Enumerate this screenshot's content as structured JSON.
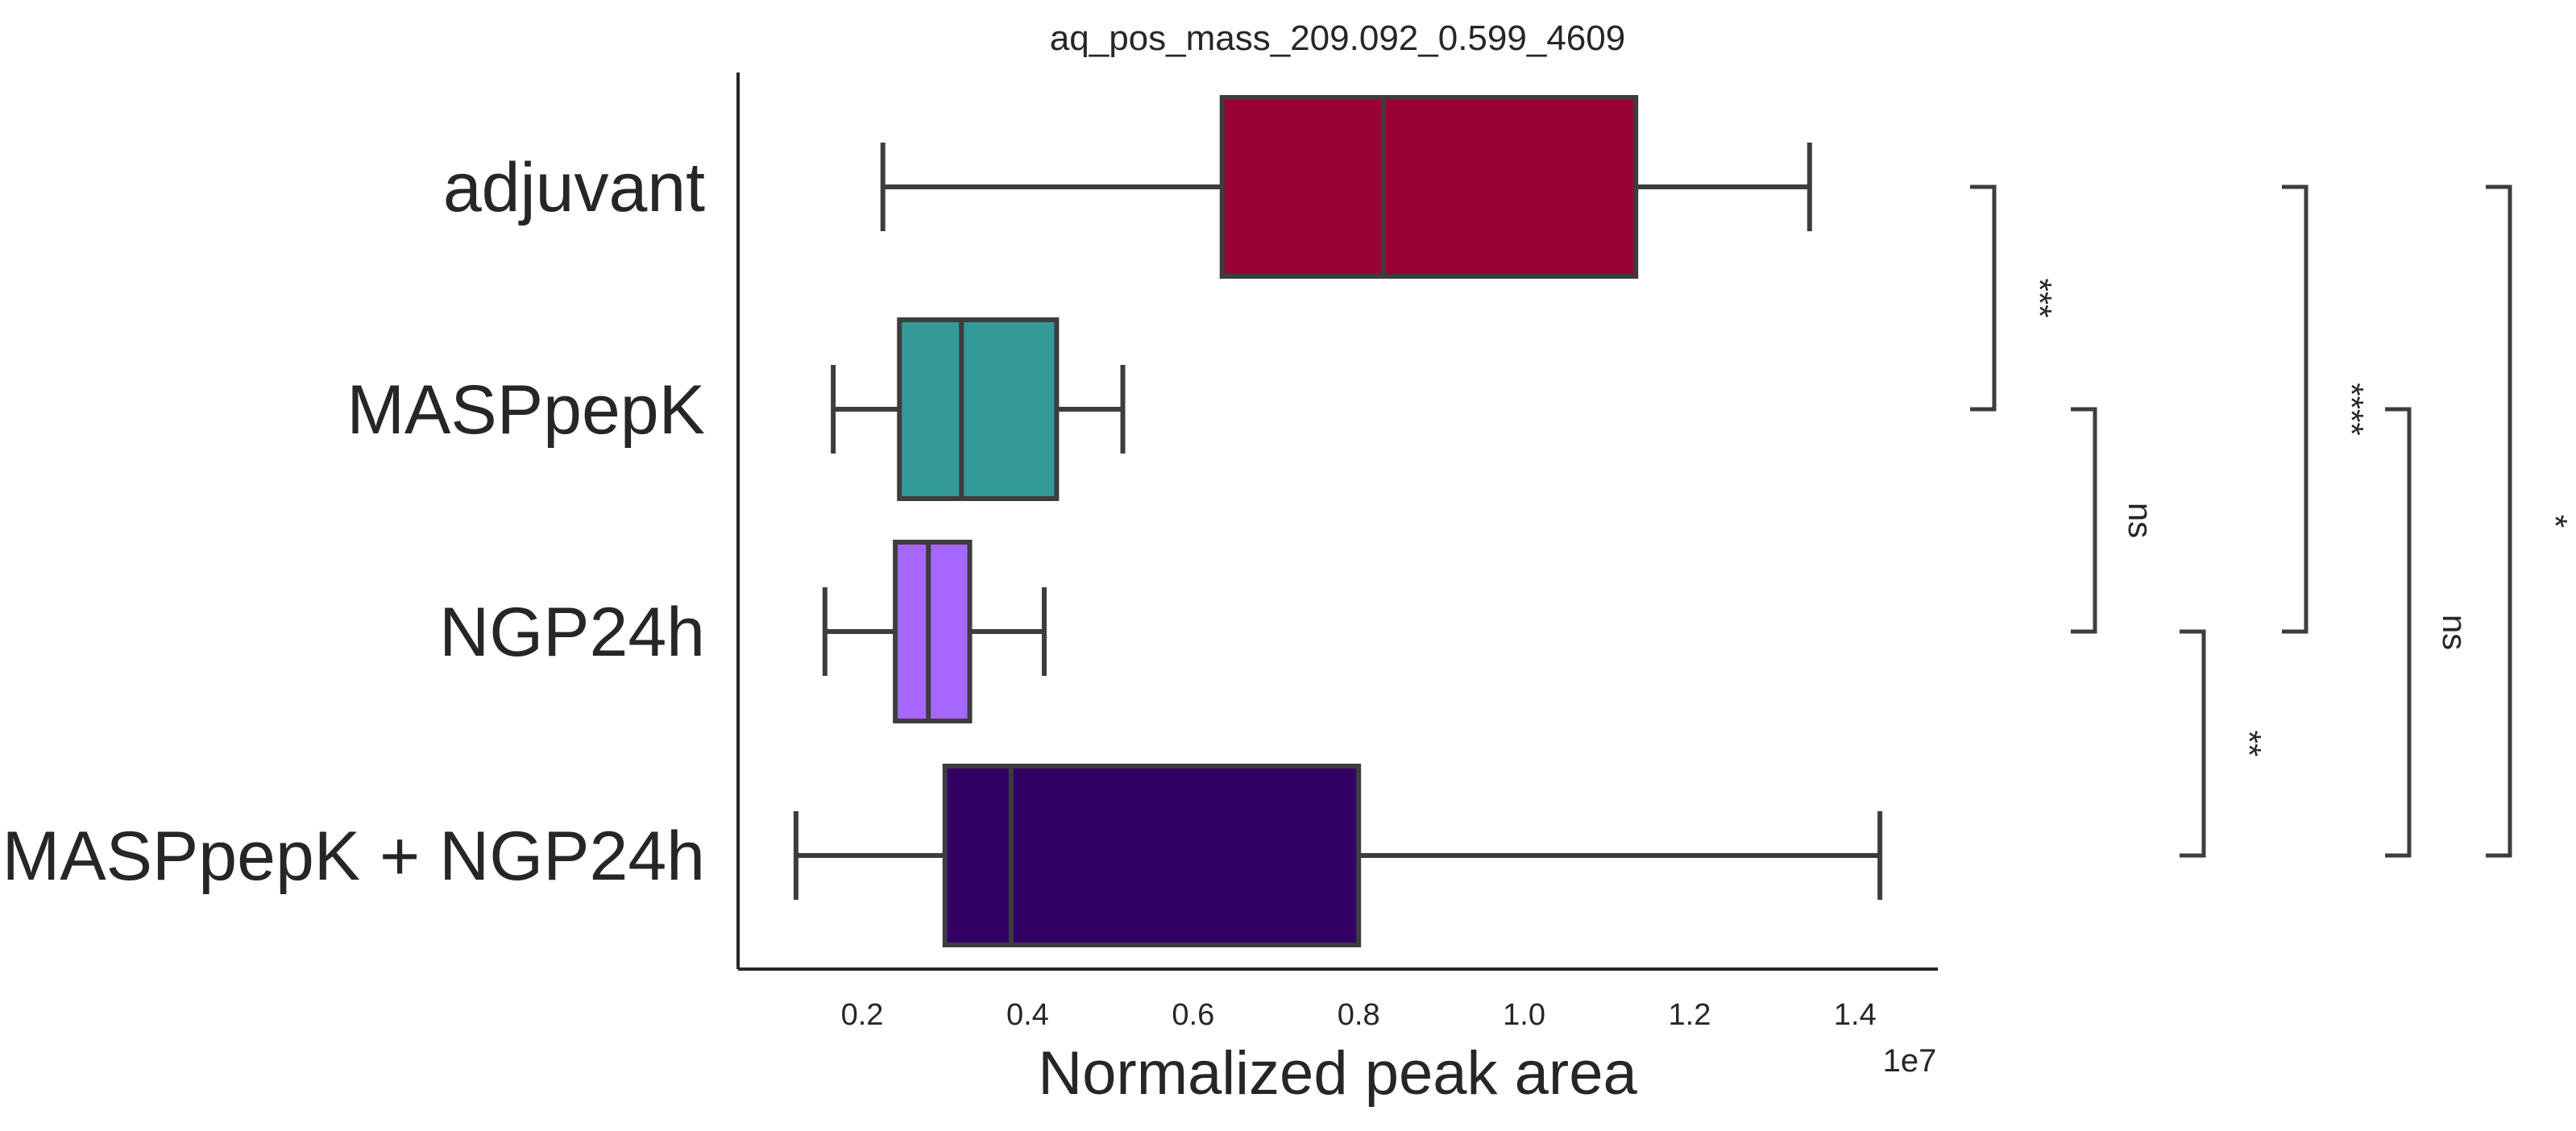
{
  "chart_data": {
    "type": "boxplot",
    "orientation": "horizontal",
    "title": "aq_pos_mass_209.092_0.599_4609",
    "xlabel": "Normalized peak area",
    "x_offset_label": "1e7",
    "xlim": [
      0.05,
      1.5
    ],
    "x_ticks": [
      0.2,
      0.4,
      0.6,
      0.8,
      1.0,
      1.2,
      1.4
    ],
    "x_tick_labels": [
      "0.2",
      "0.4",
      "0.6",
      "0.8",
      "1.0",
      "1.2",
      "1.4"
    ],
    "categories": [
      "adjuvant",
      "MASPpepK",
      "NGP24h",
      "MASPpepK + NGP24h"
    ],
    "boxes": [
      {
        "category": "adjuvant",
        "whisker_low": 0.225,
        "q1": 0.635,
        "median": 0.83,
        "q3": 1.135,
        "whisker_high": 1.345,
        "color": "#990033"
      },
      {
        "category": "MASPpepK",
        "whisker_low": 0.165,
        "q1": 0.245,
        "median": 0.32,
        "q3": 0.435,
        "whisker_high": 0.515,
        "color": "#339999"
      },
      {
        "category": "NGP24h",
        "whisker_low": 0.155,
        "q1": 0.24,
        "median": 0.28,
        "q3": 0.33,
        "whisker_high": 0.42,
        "color": "#a666ff"
      },
      {
        "category": "MASPpepK + NGP24h",
        "whisker_low": 0.12,
        "q1": 0.3,
        "median": 0.38,
        "q3": 0.8,
        "whisker_high": 1.43,
        "color": "#330066"
      }
    ],
    "comparisons": [
      {
        "from": "adjuvant",
        "to": "MASPpepK",
        "label": "***"
      },
      {
        "from": "MASPpepK",
        "to": "NGP24h",
        "label": "ns"
      },
      {
        "from": "NGP24h",
        "to": "MASPpepK + NGP24h",
        "label": "**"
      },
      {
        "from": "adjuvant",
        "to": "NGP24h",
        "label": "****"
      },
      {
        "from": "MASPpepK",
        "to": "MASPpepK + NGP24h",
        "label": "ns"
      },
      {
        "from": "adjuvant",
        "to": "MASPpepK + NGP24h",
        "label": "*"
      }
    ],
    "grid": false,
    "legend": "none"
  }
}
